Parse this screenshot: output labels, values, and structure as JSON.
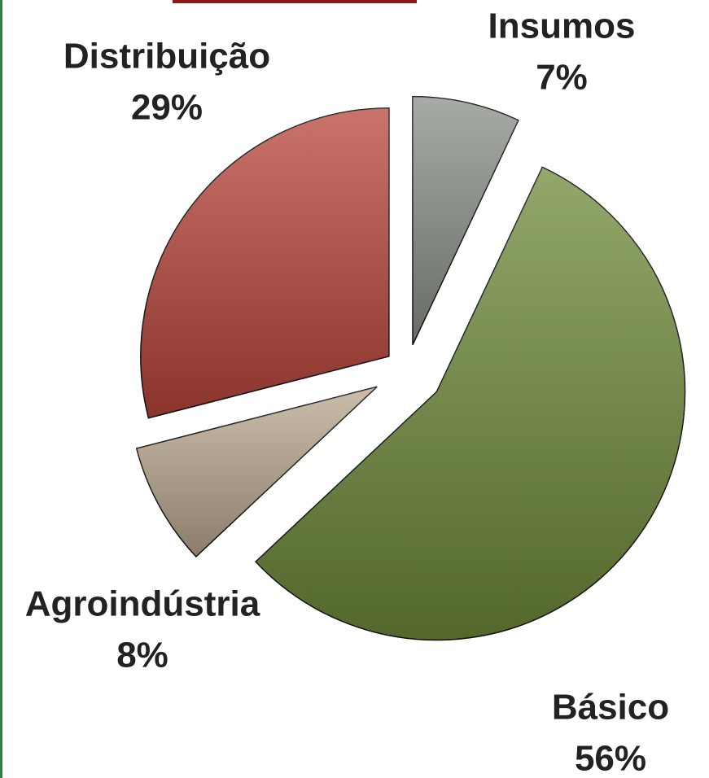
{
  "chart_data": {
    "type": "pie",
    "categories": [
      "Insumos",
      "Básico",
      "Agroindústria",
      "Distribuição"
    ],
    "values": [
      7,
      56,
      8,
      29
    ],
    "value_labels": [
      "7%",
      "56%",
      "8%",
      "29%"
    ],
    "colors": [
      "#8a8f88",
      "#6f8a3a",
      "#b9a88f",
      "#b8453a"
    ]
  }
}
